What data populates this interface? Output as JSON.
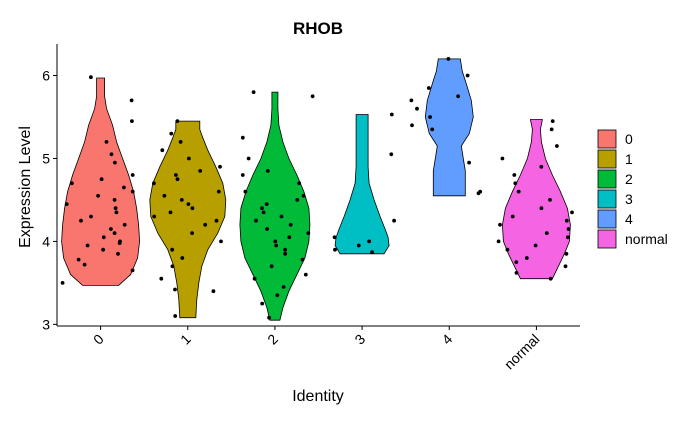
{
  "chart_data": {
    "type": "violin",
    "title": "RHOB",
    "xlabel": "Identity",
    "ylabel": "Expression Level",
    "ylim": [
      2.98,
      6.38
    ],
    "yticks": [
      3,
      4,
      5,
      6
    ],
    "grid": false,
    "legend_position": "right",
    "categories": [
      "0",
      "1",
      "2",
      "3",
      "4",
      "normal"
    ],
    "colors": [
      "#F8766D",
      "#B79F00",
      "#00BA38",
      "#00BFC4",
      "#619CFF",
      "#F564E3"
    ],
    "series": [
      {
        "name": "0",
        "range": [
          3.47,
          5.97
        ],
        "density": [
          [
            3.47,
            18
          ],
          [
            3.6,
            30
          ],
          [
            3.8,
            37
          ],
          [
            4.0,
            39
          ],
          [
            4.2,
            38
          ],
          [
            4.4,
            36
          ],
          [
            4.6,
            33
          ],
          [
            4.8,
            28
          ],
          [
            5.0,
            22
          ],
          [
            5.2,
            16
          ],
          [
            5.4,
            12
          ],
          [
            5.6,
            6
          ],
          [
            5.75,
            4
          ],
          [
            5.85,
            4
          ],
          [
            5.97,
            4
          ]
        ],
        "points": [
          3.5,
          3.65,
          3.72,
          3.78,
          3.85,
          3.9,
          3.95,
          3.98,
          4.0,
          4.05,
          4.1,
          4.15,
          4.2,
          4.25,
          4.3,
          4.35,
          4.4,
          4.45,
          4.5,
          4.55,
          4.6,
          4.65,
          4.7,
          4.75,
          4.8,
          4.95,
          5.05,
          5.2,
          5.45,
          5.7,
          5.98
        ]
      },
      {
        "name": "1",
        "range": [
          3.08,
          5.45
        ],
        "density": [
          [
            3.08,
            8
          ],
          [
            3.3,
            9
          ],
          [
            3.5,
            11
          ],
          [
            3.7,
            14
          ],
          [
            3.9,
            20
          ],
          [
            4.1,
            30
          ],
          [
            4.3,
            37
          ],
          [
            4.5,
            38
          ],
          [
            4.7,
            35
          ],
          [
            4.9,
            28
          ],
          [
            5.1,
            20
          ],
          [
            5.25,
            15
          ],
          [
            5.35,
            12
          ],
          [
            5.45,
            12
          ]
        ],
        "points": [
          3.1,
          3.4,
          3.42,
          3.55,
          3.7,
          3.8,
          3.9,
          4.0,
          4.1,
          4.2,
          4.25,
          4.3,
          4.35,
          4.4,
          4.45,
          4.5,
          4.55,
          4.6,
          4.7,
          4.75,
          4.8,
          4.85,
          4.9,
          5.0,
          5.1,
          5.2,
          5.3,
          5.45
        ]
      },
      {
        "name": "2",
        "range": [
          3.05,
          5.8
        ],
        "density": [
          [
            3.05,
            5
          ],
          [
            3.2,
            8
          ],
          [
            3.4,
            14
          ],
          [
            3.6,
            22
          ],
          [
            3.8,
            30
          ],
          [
            4.0,
            34
          ],
          [
            4.2,
            35
          ],
          [
            4.4,
            34
          ],
          [
            4.6,
            29
          ],
          [
            4.8,
            22
          ],
          [
            5.0,
            14
          ],
          [
            5.2,
            8
          ],
          [
            5.4,
            4
          ],
          [
            5.6,
            3
          ],
          [
            5.8,
            3
          ]
        ],
        "points": [
          3.08,
          3.25,
          3.35,
          3.45,
          3.55,
          3.6,
          3.7,
          3.78,
          3.85,
          3.9,
          3.95,
          4.0,
          4.05,
          4.1,
          4.15,
          4.2,
          4.25,
          4.3,
          4.35,
          4.4,
          4.45,
          4.5,
          4.55,
          4.6,
          4.7,
          4.8,
          4.85,
          5.0,
          5.25,
          5.75,
          5.8
        ]
      },
      {
        "name": "3",
        "range": [
          3.85,
          5.53
        ],
        "density": [
          [
            3.85,
            22
          ],
          [
            3.95,
            27
          ],
          [
            4.05,
            26
          ],
          [
            4.15,
            23
          ],
          [
            4.3,
            18
          ],
          [
            4.5,
            12
          ],
          [
            4.7,
            7
          ],
          [
            4.9,
            6
          ],
          [
            5.1,
            6
          ],
          [
            5.3,
            6
          ],
          [
            5.53,
            6
          ]
        ],
        "points": [
          3.87,
          3.9,
          3.95,
          4.0,
          4.05,
          4.25,
          5.05,
          5.53
        ]
      },
      {
        "name": "4",
        "range": [
          4.55,
          6.2
        ],
        "density": [
          [
            4.55,
            16
          ],
          [
            4.7,
            16
          ],
          [
            4.85,
            16
          ],
          [
            5.0,
            14
          ],
          [
            5.15,
            12
          ],
          [
            5.3,
            20
          ],
          [
            5.5,
            24
          ],
          [
            5.7,
            22
          ],
          [
            5.9,
            17
          ],
          [
            6.05,
            13
          ],
          [
            6.2,
            11
          ]
        ],
        "points": [
          4.58,
          4.6,
          4.95,
          5.35,
          5.4,
          5.5,
          5.6,
          5.7,
          5.75,
          5.85,
          6.0,
          6.2
        ]
      },
      {
        "name": "normal",
        "range": [
          3.55,
          5.47
        ],
        "density": [
          [
            3.55,
            16
          ],
          [
            3.7,
            22
          ],
          [
            3.85,
            28
          ],
          [
            4.0,
            33
          ],
          [
            4.2,
            34
          ],
          [
            4.4,
            31
          ],
          [
            4.6,
            24
          ],
          [
            4.8,
            16
          ],
          [
            5.0,
            9
          ],
          [
            5.2,
            5
          ],
          [
            5.35,
            4
          ],
          [
            5.47,
            6
          ]
        ],
        "points": [
          3.55,
          3.62,
          3.7,
          3.75,
          3.8,
          3.85,
          3.9,
          3.95,
          4.0,
          4.05,
          4.1,
          4.15,
          4.2,
          4.25,
          4.3,
          4.35,
          4.4,
          4.5,
          4.6,
          4.7,
          4.8,
          4.9,
          5.0,
          5.15,
          5.35,
          5.45
        ]
      }
    ]
  }
}
